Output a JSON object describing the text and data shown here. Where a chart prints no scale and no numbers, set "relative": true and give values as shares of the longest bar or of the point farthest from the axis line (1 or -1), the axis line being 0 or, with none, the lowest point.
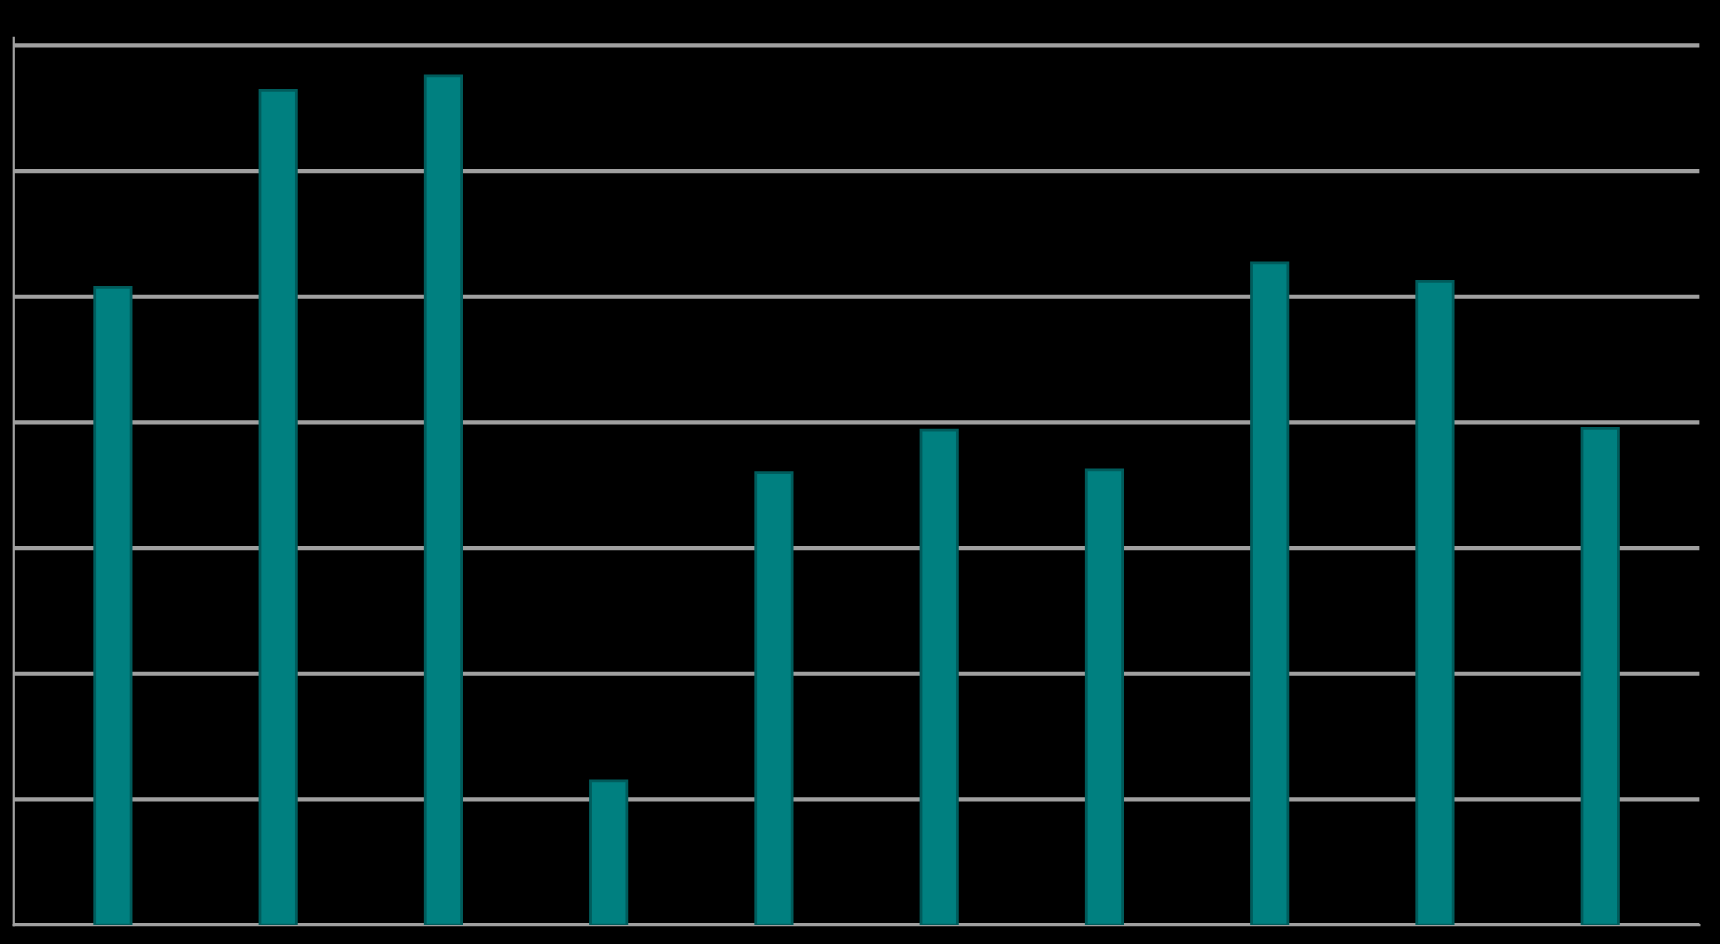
{
  "chart_data": {
    "type": "bar",
    "relative": true,
    "categories": [
      null,
      null,
      null,
      null,
      null,
      null,
      null,
      null,
      null,
      null
    ],
    "values": [
      0.751,
      0.983,
      1,
      0.17,
      0.533,
      0.583,
      0.536,
      0.78,
      0.758,
      0.585
    ],
    "color": "#008080",
    "grid": "y"
  }
}
